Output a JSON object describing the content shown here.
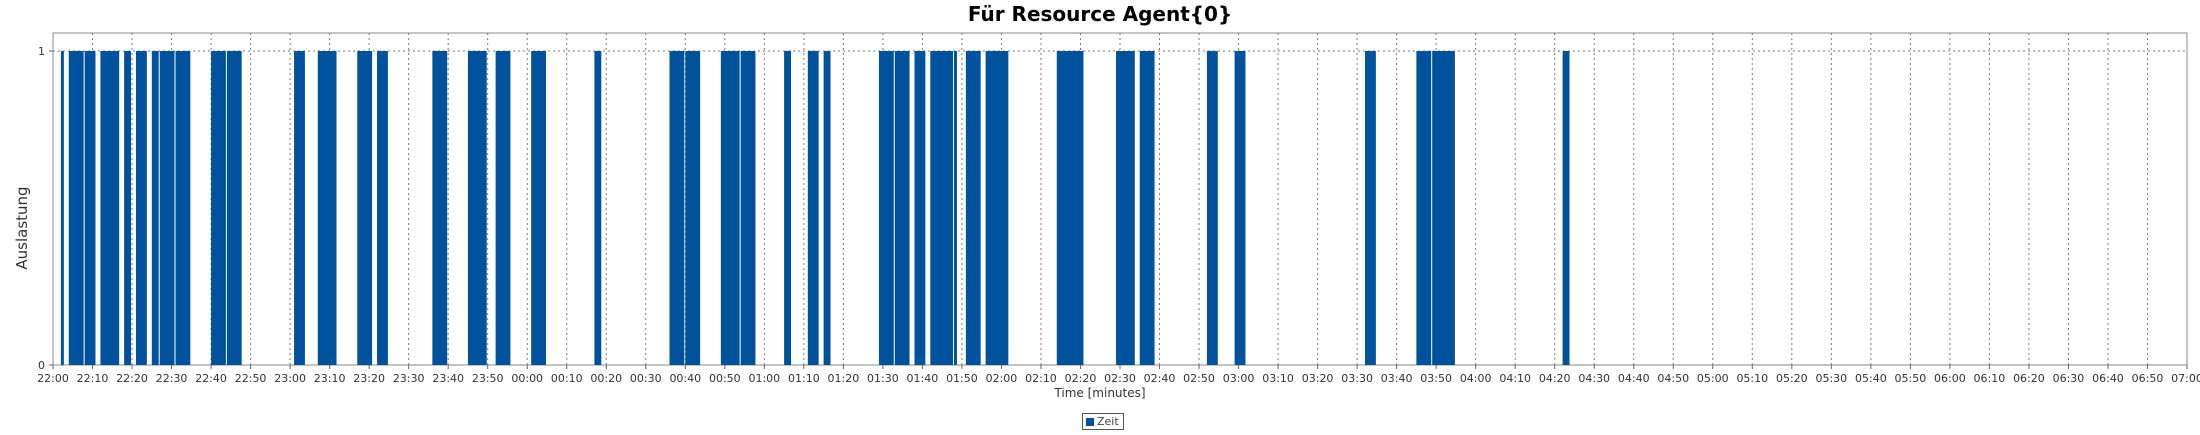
{
  "chart_data": {
    "type": "bar",
    "title": "Für Resource Agent{0}",
    "xlabel": "Time [minutes]",
    "ylabel": "Auslastung",
    "ylim": [
      0,
      1
    ],
    "y_ticks": [
      "0",
      "1"
    ],
    "x_tick_labels": [
      "22:00",
      "22:10",
      "22:20",
      "22:30",
      "22:40",
      "22:50",
      "23:00",
      "23:10",
      "23:20",
      "23:30",
      "23:40",
      "23:50",
      "00:00",
      "00:10",
      "00:20",
      "00:30",
      "00:40",
      "00:50",
      "01:00",
      "01:10",
      "01:20",
      "01:30",
      "01:40",
      "01:50",
      "02:00",
      "02:10",
      "02:20",
      "02:30",
      "02:40",
      "02:50",
      "03:00",
      "03:10",
      "03:20",
      "03:30",
      "03:40",
      "03:50",
      "04:00",
      "04:10",
      "04:20",
      "04:30",
      "04:40",
      "04:50",
      "05:00",
      "05:10",
      "05:20",
      "05:30",
      "05:40",
      "05:50",
      "06:00",
      "06:10",
      "06:20",
      "06:30",
      "06:40",
      "06:50",
      "07:00"
    ],
    "x_range_minutes": [
      0,
      540
    ],
    "grid": true,
    "legend_position": "bottom-center",
    "series": [
      {
        "name": "Zeit",
        "color": "#00529c",
        "intervals": [
          {
            "start": "22:02",
            "end": "22:03",
            "value": 1
          },
          {
            "start": "22:04",
            "end": "22:08",
            "value": 1
          },
          {
            "start": "22:08",
            "end": "22:11",
            "value": 1
          },
          {
            "start": "22:12",
            "end": "22:17",
            "value": 1
          },
          {
            "start": "22:18",
            "end": "22:20",
            "value": 1
          },
          {
            "start": "22:21",
            "end": "22:24",
            "value": 1
          },
          {
            "start": "22:25",
            "end": "22:27",
            "value": 1
          },
          {
            "start": "22:27",
            "end": "22:31",
            "value": 1
          },
          {
            "start": "22:31",
            "end": "22:35",
            "value": 1
          },
          {
            "start": "22:40",
            "end": "22:44",
            "value": 1
          },
          {
            "start": "22:44",
            "end": "22:48",
            "value": 1
          },
          {
            "start": "23:01",
            "end": "23:04",
            "value": 1
          },
          {
            "start": "23:07",
            "end": "23:12",
            "value": 1
          },
          {
            "start": "23:17",
            "end": "23:21",
            "value": 1
          },
          {
            "start": "23:22",
            "end": "23:25",
            "value": 1
          },
          {
            "start": "23:36",
            "end": "23:40",
            "value": 1
          },
          {
            "start": "23:45",
            "end": "23:50",
            "value": 1
          },
          {
            "start": "23:52",
            "end": "23:56",
            "value": 1
          },
          {
            "start": "00:01",
            "end": "00:05",
            "value": 1
          },
          {
            "start": "00:17",
            "end": "00:19",
            "value": 1
          },
          {
            "start": "00:36",
            "end": "00:40",
            "value": 1
          },
          {
            "start": "00:40",
            "end": "00:44",
            "value": 1
          },
          {
            "start": "00:49",
            "end": "00:54",
            "value": 1
          },
          {
            "start": "00:54",
            "end": "00:58",
            "value": 1
          },
          {
            "start": "01:05",
            "end": "01:07",
            "value": 1
          },
          {
            "start": "01:11",
            "end": "01:14",
            "value": 1
          },
          {
            "start": "01:15",
            "end": "01:17",
            "value": 1
          },
          {
            "start": "01:29",
            "end": "01:33",
            "value": 1
          },
          {
            "start": "01:33",
            "end": "01:37",
            "value": 1
          },
          {
            "start": "01:38",
            "end": "01:41",
            "value": 1
          },
          {
            "start": "01:42",
            "end": "01:48",
            "value": 1
          },
          {
            "start": "01:48",
            "end": "01:49",
            "value": 1
          },
          {
            "start": "01:51",
            "end": "01:55",
            "value": 1
          },
          {
            "start": "01:56",
            "end": "02:02",
            "value": 1
          },
          {
            "start": "02:14",
            "end": "02:21",
            "value": 1
          },
          {
            "start": "02:29",
            "end": "02:34",
            "value": 1
          },
          {
            "start": "02:35",
            "end": "02:39",
            "value": 1
          },
          {
            "start": "02:52",
            "end": "02:55",
            "value": 1
          },
          {
            "start": "02:59",
            "end": "03:02",
            "value": 1
          },
          {
            "start": "03:32",
            "end": "03:35",
            "value": 1
          },
          {
            "start": "03:45",
            "end": "03:49",
            "value": 1
          },
          {
            "start": "03:49",
            "end": "03:55",
            "value": 1
          },
          {
            "start": "04:22",
            "end": "04:24",
            "value": 1
          }
        ]
      }
    ]
  }
}
